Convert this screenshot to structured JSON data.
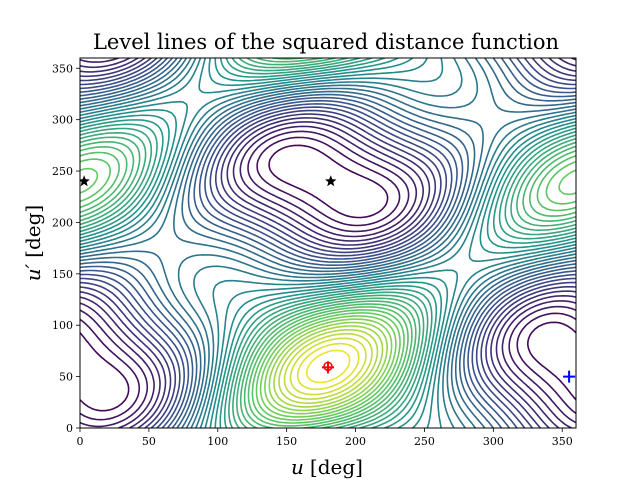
{
  "chart_data": {
    "type": "contour",
    "title": "Level lines of the squared distance function",
    "xlabel": {
      "symbol": "u",
      "unit": "[deg]"
    },
    "ylabel": {
      "symbol": "u′",
      "unit": "[deg]"
    },
    "xlim": [
      0,
      360
    ],
    "ylim": [
      0,
      360
    ],
    "xticks": [
      "0",
      "50",
      "100",
      "150",
      "200",
      "250",
      "300",
      "350"
    ],
    "yticks": [
      "0",
      "50",
      "100",
      "150",
      "200",
      "250",
      "300",
      "350"
    ],
    "colormap": "viridis",
    "grid": false,
    "levels": 40,
    "markers": [
      {
        "name": "saddle-star-left",
        "shape": "star",
        "color": "#000000",
        "x": 3,
        "y": 240
      },
      {
        "name": "saddle-star-center",
        "shape": "star",
        "color": "#000000",
        "x": 182,
        "y": 240
      },
      {
        "name": "minimum-circle",
        "shape": "circle",
        "color": "#ff0000",
        "x": 180,
        "y": 60
      },
      {
        "name": "minimum-plus",
        "shape": "plus",
        "color": "#ff0000",
        "x": 180,
        "y": 59
      },
      {
        "name": "reference-plus",
        "shape": "plus",
        "color": "#0000ff",
        "x": 355,
        "y": 50
      }
    ]
  }
}
